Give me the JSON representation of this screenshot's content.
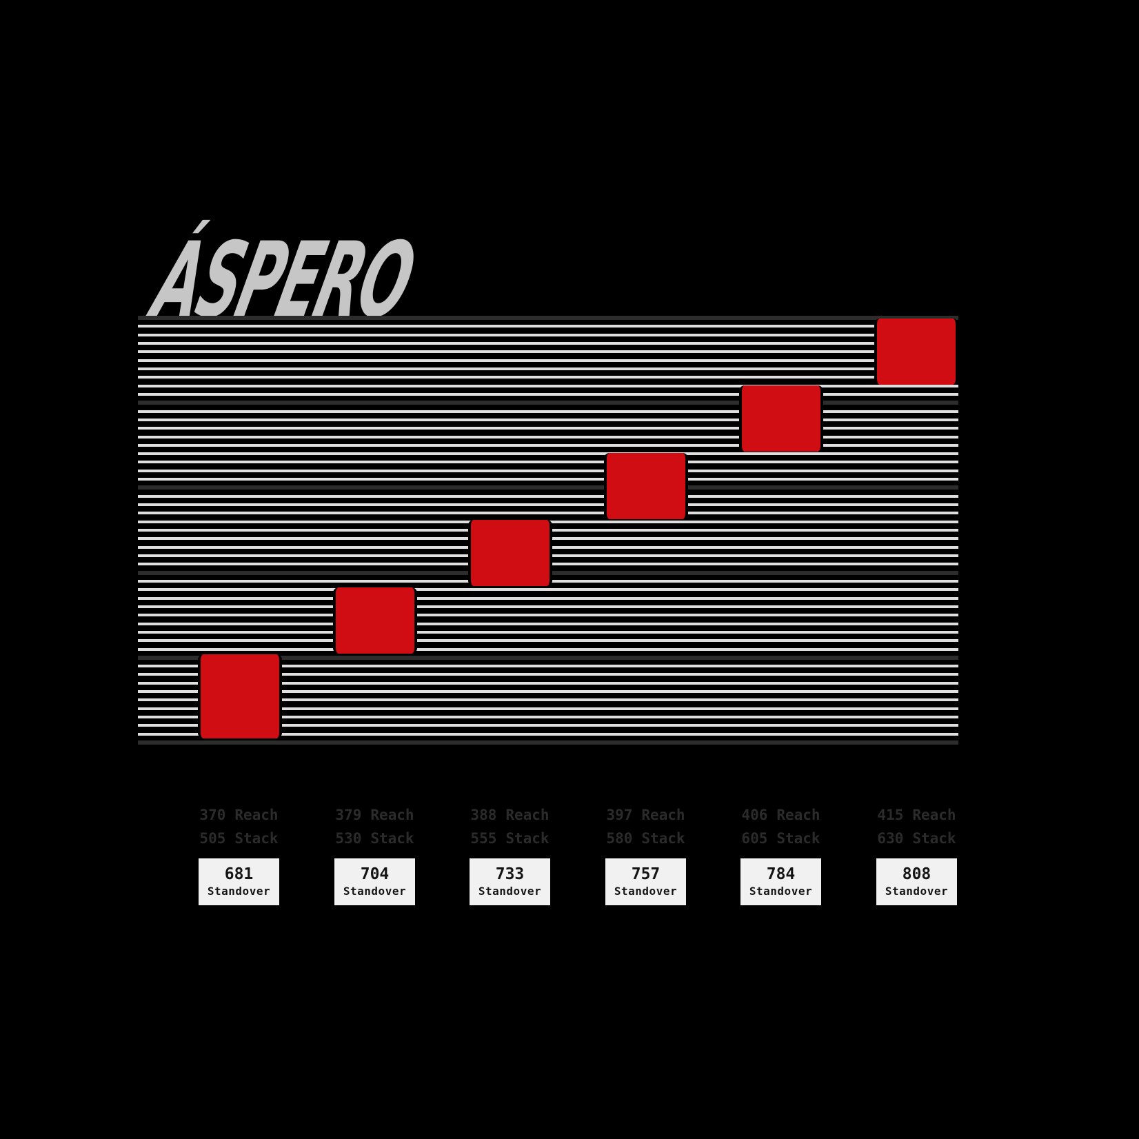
{
  "brand": {
    "logo_text": "ÁSPERO"
  },
  "colors": {
    "background": "#000000",
    "accent_red": "#d00d12",
    "stripe_light": "#dfdfdf",
    "stripe_dark": "#2d2d2d",
    "logo_gray": "#c6c6c6",
    "label_text": "#2b2b2b",
    "box_background": "#f1f1f1",
    "box_text": "#141414"
  },
  "chart_data": {
    "type": "scatter",
    "title": "ÁSPERO",
    "marker": "red-square",
    "x_field": "reach",
    "y_field": "stack",
    "x_range": [
      370,
      415
    ],
    "y_range": [
      505,
      630
    ],
    "grid": "horizontal-stripes",
    "field_labels": {
      "reach": "Reach",
      "stack": "Stack",
      "standover": "Standover"
    },
    "sizes": [
      {
        "reach": 370,
        "stack": 505,
        "standover": 681
      },
      {
        "reach": 379,
        "stack": 530,
        "standover": 704
      },
      {
        "reach": 388,
        "stack": 555,
        "standover": 733
      },
      {
        "reach": 397,
        "stack": 580,
        "standover": 757
      },
      {
        "reach": 406,
        "stack": 605,
        "standover": 784
      },
      {
        "reach": 415,
        "stack": 630,
        "standover": 808
      }
    ]
  }
}
